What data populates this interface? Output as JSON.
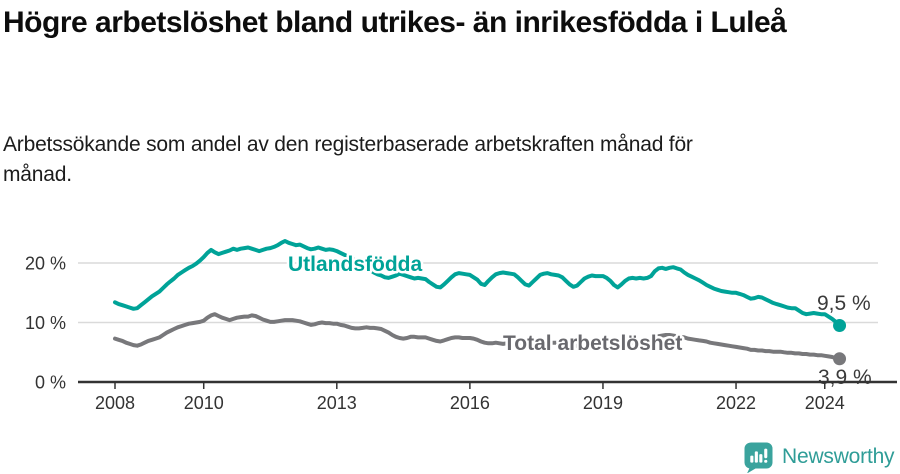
{
  "header": {
    "title": "Högre arbetslöshet bland utrikes- än inrikesfödda i Luleå",
    "subtitle": "Arbetssökande som andel av den registerbaserade arbetskraften månad för månad."
  },
  "chart_data": {
    "type": "line",
    "title": "Högre arbetslöshet bland utrikes- än inrikesfödda i Luleå",
    "subtitle": "Arbetssökande som andel av den registerbaserade arbetskraften månad för månad.",
    "x_unit": "year-month",
    "x_start": 2008.0,
    "x_step": 0.0833333,
    "xlim": [
      2008.0,
      2024.42
    ],
    "ylim": [
      0,
      25
    ],
    "grid": "horizontal",
    "legend": "inline-labels",
    "y_ticks": [
      {
        "value": 0,
        "label": "0 %"
      },
      {
        "value": 10,
        "label": "10 %"
      },
      {
        "value": 20,
        "label": "20 %"
      }
    ],
    "x_ticks": [
      {
        "value": 2008,
        "label": "2008"
      },
      {
        "value": 2010,
        "label": "2010"
      },
      {
        "value": 2013,
        "label": "2013"
      },
      {
        "value": 2016,
        "label": "2016"
      },
      {
        "value": 2019,
        "label": "2019"
      },
      {
        "value": 2022,
        "label": "2022"
      },
      {
        "value": 2024,
        "label": "2024"
      }
    ],
    "series": [
      {
        "name": "Utlandsfödda",
        "color": "#00a398",
        "end_value": 9.5,
        "end_value_label": "9,5 %",
        "values": [
          13.4,
          13.1,
          12.9,
          12.7,
          12.5,
          12.3,
          12.4,
          12.9,
          13.4,
          13.9,
          14.4,
          14.8,
          15.2,
          15.8,
          16.4,
          16.9,
          17.4,
          18.0,
          18.4,
          18.8,
          19.2,
          19.5,
          19.9,
          20.4,
          21.0,
          21.7,
          22.2,
          21.8,
          21.5,
          21.7,
          21.9,
          22.1,
          22.4,
          22.2,
          22.4,
          22.5,
          22.6,
          22.4,
          22.2,
          22.0,
          22.2,
          22.4,
          22.5,
          22.7,
          23.0,
          23.4,
          23.7,
          23.4,
          23.2,
          23.0,
          23.1,
          22.8,
          22.5,
          22.3,
          22.4,
          22.6,
          22.4,
          22.2,
          22.3,
          22.2,
          22.0,
          21.7,
          21.4,
          21.1,
          20.8,
          20.4,
          20.0,
          19.6,
          19.2,
          18.8,
          18.4,
          18.1,
          17.9,
          17.6,
          17.5,
          17.7,
          17.9,
          18.2,
          18.0,
          17.8,
          17.6,
          17.4,
          17.5,
          17.4,
          17.3,
          16.8,
          16.4,
          16.0,
          15.9,
          16.4,
          17.0,
          17.6,
          18.1,
          18.3,
          18.2,
          18.1,
          18.0,
          17.6,
          17.2,
          16.5,
          16.3,
          17.0,
          17.6,
          18.1,
          18.3,
          18.4,
          18.3,
          18.2,
          18.1,
          17.6,
          17.0,
          16.4,
          16.2,
          16.8,
          17.4,
          18.0,
          18.2,
          18.3,
          18.1,
          18.0,
          17.9,
          17.6,
          17.0,
          16.4,
          16.0,
          16.2,
          16.8,
          17.4,
          17.7,
          17.9,
          17.8,
          17.8,
          17.8,
          17.5,
          17.0,
          16.3,
          15.9,
          16.4,
          17.0,
          17.4,
          17.5,
          17.4,
          17.5,
          17.4,
          17.5,
          17.8,
          18.6,
          19.1,
          19.2,
          19.0,
          19.2,
          19.3,
          19.1,
          18.9,
          18.4,
          18.0,
          17.7,
          17.4,
          17.1,
          16.7,
          16.3,
          16.0,
          15.7,
          15.5,
          15.3,
          15.2,
          15.1,
          15.0,
          15.0,
          14.8,
          14.6,
          14.3,
          14.0,
          14.1,
          14.3,
          14.2,
          13.9,
          13.6,
          13.3,
          13.1,
          12.9,
          12.7,
          12.5,
          12.4,
          12.4,
          12.0,
          11.6,
          11.4,
          11.5,
          11.6,
          11.5,
          11.4,
          11.4,
          11.0,
          10.6,
          10.1,
          9.5
        ]
      },
      {
        "name": "Total arbetslöshet",
        "color": "#78787b",
        "end_value": 3.9,
        "end_value_label": "3,9 %",
        "values": [
          7.3,
          7.1,
          6.9,
          6.6,
          6.4,
          6.2,
          6.1,
          6.3,
          6.6,
          6.9,
          7.1,
          7.3,
          7.5,
          7.9,
          8.3,
          8.6,
          8.9,
          9.2,
          9.4,
          9.6,
          9.8,
          9.9,
          10.0,
          10.1,
          10.3,
          10.8,
          11.2,
          11.4,
          11.1,
          10.8,
          10.6,
          10.4,
          10.6,
          10.8,
          10.9,
          11.0,
          11.0,
          11.2,
          11.1,
          10.8,
          10.5,
          10.3,
          10.1,
          10.1,
          10.2,
          10.3,
          10.4,
          10.4,
          10.4,
          10.3,
          10.2,
          10.0,
          9.8,
          9.6,
          9.7,
          9.9,
          10.0,
          9.9,
          9.9,
          9.8,
          9.8,
          9.6,
          9.5,
          9.3,
          9.1,
          9.0,
          9.0,
          9.1,
          9.2,
          9.1,
          9.1,
          9.0,
          8.9,
          8.6,
          8.3,
          7.9,
          7.6,
          7.4,
          7.3,
          7.4,
          7.6,
          7.6,
          7.5,
          7.5,
          7.5,
          7.3,
          7.1,
          6.9,
          6.8,
          7.0,
          7.2,
          7.4,
          7.5,
          7.5,
          7.4,
          7.4,
          7.4,
          7.3,
          7.1,
          6.8,
          6.6,
          6.5,
          6.5,
          6.6,
          6.5,
          6.4,
          6.5,
          6.6,
          6.9,
          6.8,
          6.6,
          6.4,
          6.3,
          6.4,
          6.5,
          6.7,
          6.7,
          6.6,
          6.6,
          6.6,
          6.6,
          6.4,
          6.2,
          6.0,
          6.0,
          6.1,
          6.2,
          6.3,
          6.3,
          6.2,
          6.2,
          6.2,
          6.2,
          6.1,
          6.0,
          5.9,
          5.9,
          6.0,
          6.1,
          6.2,
          6.2,
          6.3,
          6.3,
          6.3,
          6.4,
          6.6,
          7.2,
          7.7,
          7.8,
          7.9,
          7.9,
          7.8,
          7.7,
          7.6,
          7.5,
          7.3,
          7.2,
          7.1,
          7.0,
          6.9,
          6.8,
          6.6,
          6.5,
          6.4,
          6.3,
          6.2,
          6.1,
          6.0,
          5.9,
          5.8,
          5.7,
          5.6,
          5.4,
          5.4,
          5.3,
          5.3,
          5.2,
          5.2,
          5.1,
          5.1,
          5.1,
          5.0,
          4.9,
          4.9,
          4.8,
          4.8,
          4.7,
          4.7,
          4.6,
          4.6,
          4.5,
          4.5,
          4.4,
          4.3,
          4.2,
          4.0,
          3.9
        ]
      }
    ],
    "style": {
      "gridline_color": "#dadada",
      "axis_color": "#333333",
      "tick_label_color": "#333333",
      "series_label_colors": [
        "#00a398",
        "#69696e"
      ],
      "value_label_color": "#3a3a3a"
    }
  },
  "footer": {
    "brand": "Newsworthy",
    "brand_color": "#2f9d97",
    "logo_icon": "speech-bubble-bar-chart-icon"
  }
}
